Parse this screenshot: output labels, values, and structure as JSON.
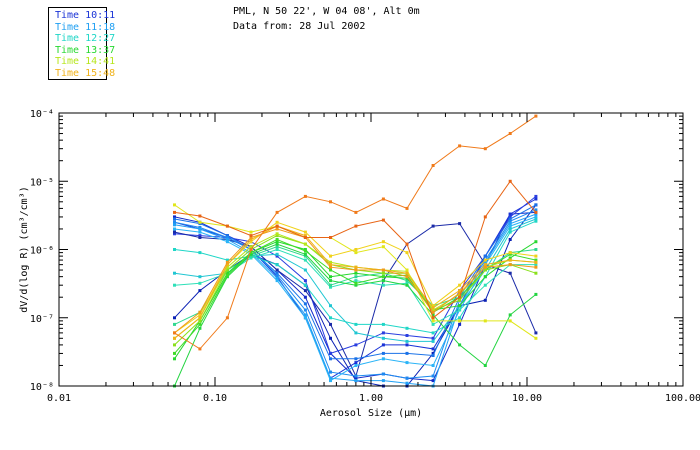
{
  "header": {
    "title": "PML, N 50 22', W 04 08', Alt 0m",
    "subtitle": "Data from: 28 Jul 2002"
  },
  "legend": [
    {
      "label": "Time 10:11",
      "color": "#1a33d6"
    },
    {
      "label": "Time 11:18",
      "color": "#1e9ff2"
    },
    {
      "label": "Time 12:27",
      "color": "#1fd6c7"
    },
    {
      "label": "Time 13:37",
      "color": "#27d831"
    },
    {
      "label": "Time 14:41",
      "color": "#b6e61b"
    },
    {
      "label": "Time 15:48",
      "color": "#f0b21a"
    }
  ],
  "axes": {
    "xlabel": "Aerosol Size (µm)",
    "ylabel": "dV/d(log R) (cm³/cm³)",
    "xticks": [
      "0.01",
      "0.10",
      "1.00",
      "10.00",
      "100.00"
    ],
    "yticks": [
      "10⁻⁸",
      "10⁻⁷",
      "10⁻⁶",
      "10⁻⁵",
      "10⁻⁴"
    ]
  },
  "chart_data": {
    "type": "line",
    "title": "PML, N 50 22', W 04 08', Alt 0m",
    "subtitle": "Data from: 28 Jul 2002",
    "xlabel": "Aerosol Size (µm)",
    "ylabel": "dV/d(log R) (cm³/cm³)",
    "xscale": "log",
    "yscale": "log",
    "xlim": [
      0.01,
      100
    ],
    "ylim": [
      1e-08,
      0.0001
    ],
    "grid": false,
    "legend_position": "top-left, outside plot",
    "x": [
      0.055,
      0.08,
      0.12,
      0.17,
      0.25,
      0.38,
      0.55,
      0.8,
      1.2,
      1.7,
      2.5,
      3.7,
      5.4,
      7.8,
      11.4
    ],
    "series": [
      {
        "group": "Time 10:11",
        "color": "#0a20b4",
        "values": [
          1e-07,
          2.5e-07,
          5e-07,
          8.5e-07,
          6e-07,
          3e-07,
          5e-08,
          1.2e-08,
          8e-09,
          6e-09,
          3e-08,
          1.5e-07,
          1.8e-07,
          1.4e-06,
          4.5e-06
        ]
      },
      {
        "group": "Time 10:11",
        "color": "#1428c8",
        "values": [
          3e-06,
          2.5e-06,
          1.6e-06,
          1.1e-06,
          5e-07,
          2e-07,
          3e-08,
          1.3e-08,
          1.5e-08,
          1.3e-08,
          1.2e-08,
          8e-08,
          6e-07,
          3.3e-06,
          3.5e-06
        ]
      },
      {
        "group": "Time 10:11",
        "color": "#1932d7",
        "values": [
          2.5e-06,
          2e-06,
          1.5e-06,
          1e-06,
          4e-07,
          1e-07,
          1.3e-08,
          2.2e-08,
          4e-08,
          4e-08,
          3.5e-08,
          1.5e-07,
          8e-07,
          3.3e-06,
          5.5e-06
        ]
      },
      {
        "group": "Time 10:11",
        "color": "#2a3ee0",
        "values": [
          1.7e-06,
          1.6e-06,
          1.5e-06,
          1.3e-06,
          8e-07,
          3.5e-07,
          3e-08,
          4e-08,
          6e-08,
          5.5e-08,
          5e-08,
          2.5e-07,
          8e-07,
          3e-06,
          6e-06
        ]
      },
      {
        "group": "Time 10:11",
        "color": "#1a2aa8",
        "values": [
          1.8e-06,
          1.5e-06,
          1.4e-06,
          1.1e-06,
          5e-07,
          2.5e-07,
          8e-08,
          1.4e-08,
          3.5e-07,
          1.2e-06,
          2.2e-06,
          2.4e-06,
          6e-07,
          4.5e-07,
          6e-08
        ]
      },
      {
        "group": "Time 11:18",
        "color": "#1a72e8",
        "values": [
          2.8e-06,
          2.4e-06,
          1.6e-06,
          1e-06,
          4.5e-07,
          1.6e-07,
          2.5e-08,
          2.5e-08,
          3e-08,
          3e-08,
          2.8e-08,
          2e-07,
          8e-07,
          2.8e-06,
          4.5e-06
        ]
      },
      {
        "group": "Time 11:18",
        "color": "#1e8bf0",
        "values": [
          2.5e-06,
          2.1e-06,
          1.5e-06,
          1e-06,
          4.2e-07,
          1.3e-07,
          1.6e-08,
          1.4e-08,
          1.5e-08,
          1.3e-08,
          1.4e-08,
          1.8e-07,
          7e-07,
          2.6e-06,
          3.8e-06
        ]
      },
      {
        "group": "Time 11:18",
        "color": "#22a2f5",
        "values": [
          2.3e-06,
          2e-06,
          1.4e-06,
          9e-07,
          3.8e-07,
          1.1e-07,
          1.3e-08,
          1.2e-08,
          1.2e-08,
          1.1e-08,
          1e-08,
          1.5e-07,
          6.5e-07,
          2.4e-06,
          3.3e-06
        ]
      },
      {
        "group": "Time 11:18",
        "color": "#2ab4f7",
        "values": [
          2e-06,
          1.8e-06,
          1.3e-06,
          8.5e-07,
          3.5e-07,
          1e-07,
          1.2e-08,
          2e-08,
          2.5e-08,
          2.2e-08,
          2e-08,
          1.3e-07,
          6e-07,
          2.2e-06,
          3e-06
        ]
      },
      {
        "group": "Time 12:27",
        "color": "#20c6d2",
        "values": [
          4.5e-07,
          4e-07,
          4.5e-07,
          8e-07,
          8.5e-07,
          5e-07,
          1.5e-07,
          6e-08,
          5e-08,
          4.5e-08,
          4.5e-08,
          1.5e-07,
          5e-07,
          2e-06,
          2.8e-06
        ]
      },
      {
        "group": "Time 12:27",
        "color": "#1fd6c7",
        "values": [
          1e-06,
          9e-07,
          7e-07,
          8e-07,
          6e-07,
          3e-07,
          1e-07,
          8e-08,
          8e-08,
          7e-08,
          6e-08,
          1e-07,
          4e-07,
          1.8e-06,
          2.6e-06
        ]
      },
      {
        "group": "Time 12:27",
        "color": "#2ee0b8",
        "values": [
          3e-07,
          3.2e-07,
          4.5e-07,
          7.5e-07,
          1e-06,
          7e-07,
          2.8e-07,
          3.5e-07,
          3e-07,
          3.2e-07,
          8e-08,
          1.3e-07,
          3e-07,
          6e-07,
          6e-07
        ]
      },
      {
        "group": "Time 12:27",
        "color": "#30d88f",
        "values": [
          8e-08,
          1.2e-07,
          5e-07,
          8e-07,
          1.1e-06,
          8e-07,
          3e-07,
          4e-07,
          4.5e-07,
          3.5e-07,
          1.5e-07,
          2e-07,
          5e-07,
          9e-07,
          1e-06
        ]
      },
      {
        "group": "Time 13:37",
        "color": "#22d440",
        "values": [
          1e-08,
          7e-08,
          4e-07,
          8.5e-07,
          1.2e-06,
          8.5e-07,
          3.5e-07,
          3e-07,
          3.5e-07,
          3e-07,
          1.1e-07,
          4e-08,
          2e-08,
          1.1e-07,
          2.2e-07
        ]
      },
      {
        "group": "Time 13:37",
        "color": "#27d831",
        "values": [
          2.5e-08,
          9e-08,
          4.5e-07,
          9e-07,
          1.3e-06,
          1e-06,
          4e-07,
          4.5e-07,
          4e-07,
          3.8e-07,
          1.3e-07,
          1.5e-07,
          4e-07,
          7.5e-07,
          1.3e-06
        ]
      },
      {
        "group": "Time 13:37",
        "color": "#3fdc28",
        "values": [
          3e-08,
          8e-08,
          4.2e-07,
          9e-07,
          1.4e-06,
          9.5e-07,
          5e-07,
          3.2e-07,
          4e-07,
          4.2e-07,
          1.2e-07,
          2e-07,
          5e-07,
          8.5e-07,
          7e-07
        ]
      },
      {
        "group": "Time 14:41",
        "color": "#8ae01c",
        "values": [
          4e-08,
          9e-08,
          5e-07,
          1e-06,
          1.6e-06,
          1.2e-06,
          6e-07,
          5e-07,
          4.5e-07,
          4.5e-07,
          1.3e-07,
          1.8e-07,
          5e-07,
          6e-07,
          4.5e-07
        ]
      },
      {
        "group": "Time 14:41",
        "color": "#b6e61b",
        "values": [
          5e-08,
          1e-07,
          5.5e-07,
          1.1e-06,
          1.7e-06,
          1.2e-06,
          6.5e-07,
          5.5e-07,
          5e-07,
          4.8e-07,
          1.3e-07,
          2.2e-07,
          5.5e-07,
          7e-07,
          6.5e-07
        ]
      },
      {
        "group": "Time 14:41",
        "color": "#e0e61a",
        "values": [
          4.5e-06,
          2.5e-06,
          2.2e-06,
          1.8e-06,
          2.2e-06,
          1.5e-06,
          1.5e-06,
          9e-07,
          1.1e-06,
          5e-07,
          9e-08,
          9e-08,
          9e-08,
          9e-08,
          5e-08
        ]
      },
      {
        "group": "Time 14:41",
        "color": "#f0d21a",
        "values": [
          6e-08,
          1.1e-07,
          6e-07,
          1.3e-06,
          2.5e-06,
          1.8e-06,
          8e-07,
          1e-06,
          1.3e-06,
          9e-07,
          1.5e-07,
          3e-07,
          7e-07,
          9e-07,
          8e-07
        ]
      },
      {
        "group": "Time 15:48",
        "color": "#f0b21a",
        "values": [
          5e-08,
          1e-07,
          6e-07,
          1.4e-06,
          2.2e-06,
          1.6e-06,
          6e-07,
          5.5e-07,
          5e-07,
          4.5e-07,
          1.4e-07,
          2.5e-07,
          6e-07,
          7e-07,
          6.5e-07
        ]
      },
      {
        "group": "Time 15:48",
        "color": "#f09a1a",
        "values": [
          6e-08,
          1.2e-07,
          6.5e-07,
          1.5e-06,
          2e-06,
          1.5e-06,
          5.5e-07,
          5e-07,
          5e-07,
          4e-07,
          1.2e-07,
          2.3e-07,
          5.5e-07,
          6e-07,
          5.5e-07
        ]
      },
      {
        "group": "Time 15:48",
        "color": "#f07a1a",
        "values": [
          6e-08,
          3.5e-08,
          1e-07,
          1e-06,
          3.5e-06,
          6e-06,
          5e-06,
          3.5e-06,
          5.5e-06,
          4e-06,
          1.7e-05,
          3.3e-05,
          3e-05,
          5e-05,
          9e-05
        ]
      },
      {
        "group": "Time 15:48",
        "color": "#e86414",
        "values": [
          3.5e-06,
          3.1e-06,
          2.2e-06,
          1.6e-06,
          2.2e-06,
          1.5e-06,
          1.5e-06,
          2.2e-06,
          2.7e-06,
          1.2e-06,
          1e-07,
          2e-07,
          3e-06,
          1e-05,
          3.5e-06
        ]
      }
    ]
  }
}
